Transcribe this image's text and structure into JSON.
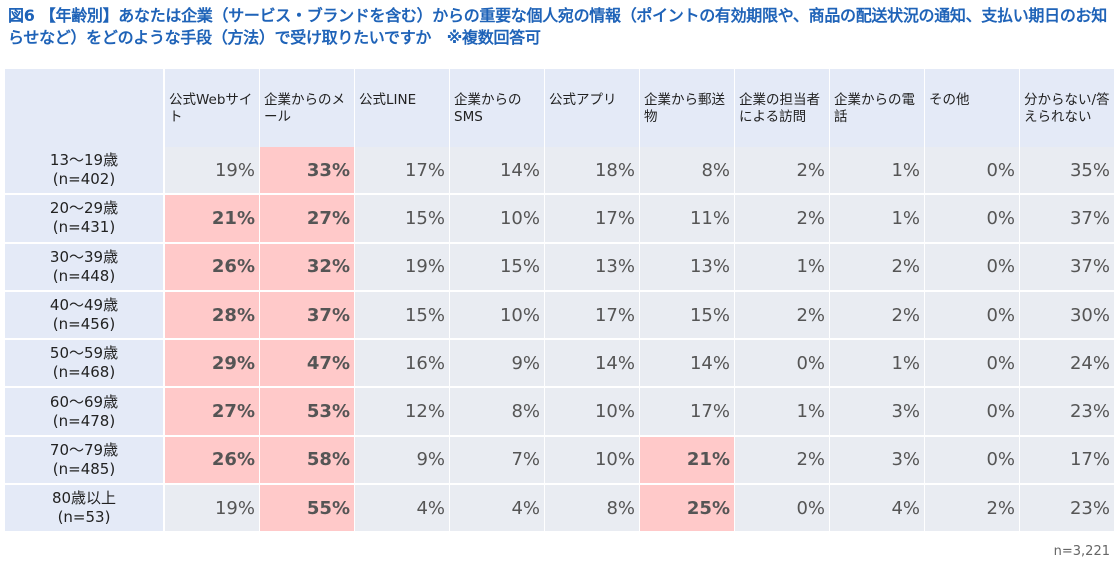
{
  "title": "図6 【年齢別】あなたは企業（サービス・ブランドを含む）からの重要な個人宛の情報（ポイントの有効期限や、商品の配送状況の通知、支払い期日のお知らせなど）をどのような手段（方法）で受け取りたいですか　※複数回答可",
  "note": "n=3,221",
  "colors": {
    "header_bg": "#e4eaf7",
    "cell_bg": "#e9ecf2",
    "highlight": "#ffc9c9",
    "title": "#1f63b8"
  },
  "chart_data": {
    "type": "table",
    "columns": [
      "公式Webサイト",
      "企業からのメール",
      "公式LINE",
      "企業からのSMS",
      "公式アプリ",
      "企業から郵送物",
      "企業の担当者による訪問",
      "企業からの電話",
      "その他",
      "分からない/答えられない"
    ],
    "rows": [
      {
        "label": "13～19歳",
        "n": "(n=402)",
        "values": [
          "19%",
          "33%",
          "17%",
          "14%",
          "18%",
          "8%",
          "2%",
          "1%",
          "0%",
          "35%"
        ],
        "highlight": [
          false,
          true,
          false,
          false,
          false,
          false,
          false,
          false,
          false,
          false
        ]
      },
      {
        "label": "20～29歳",
        "n": "(n=431)",
        "values": [
          "21%",
          "27%",
          "15%",
          "10%",
          "17%",
          "11%",
          "2%",
          "1%",
          "0%",
          "37%"
        ],
        "highlight": [
          true,
          true,
          false,
          false,
          false,
          false,
          false,
          false,
          false,
          false
        ]
      },
      {
        "label": "30～39歳",
        "n": "(n=448)",
        "values": [
          "26%",
          "32%",
          "19%",
          "15%",
          "13%",
          "13%",
          "1%",
          "2%",
          "0%",
          "37%"
        ],
        "highlight": [
          true,
          true,
          false,
          false,
          false,
          false,
          false,
          false,
          false,
          false
        ]
      },
      {
        "label": "40～49歳",
        "n": "(n=456)",
        "values": [
          "28%",
          "37%",
          "15%",
          "10%",
          "17%",
          "15%",
          "2%",
          "2%",
          "0%",
          "30%"
        ],
        "highlight": [
          true,
          true,
          false,
          false,
          false,
          false,
          false,
          false,
          false,
          false
        ]
      },
      {
        "label": "50～59歳",
        "n": "(n=468)",
        "values": [
          "29%",
          "47%",
          "16%",
          "9%",
          "14%",
          "14%",
          "0%",
          "1%",
          "0%",
          "24%"
        ],
        "highlight": [
          true,
          true,
          false,
          false,
          false,
          false,
          false,
          false,
          false,
          false
        ]
      },
      {
        "label": "60～69歳",
        "n": "(n=478)",
        "values": [
          "27%",
          "53%",
          "12%",
          "8%",
          "10%",
          "17%",
          "1%",
          "3%",
          "0%",
          "23%"
        ],
        "highlight": [
          true,
          true,
          false,
          false,
          false,
          false,
          false,
          false,
          false,
          false
        ]
      },
      {
        "label": "70～79歳",
        "n": "(n=485)",
        "values": [
          "26%",
          "58%",
          "9%",
          "7%",
          "10%",
          "21%",
          "2%",
          "3%",
          "0%",
          "17%"
        ],
        "highlight": [
          true,
          true,
          false,
          false,
          false,
          true,
          false,
          false,
          false,
          false
        ]
      },
      {
        "label": "80歳以上",
        "n": "(n=53)",
        "values": [
          "19%",
          "55%",
          "4%",
          "4%",
          "8%",
          "25%",
          "0%",
          "4%",
          "2%",
          "23%"
        ],
        "highlight": [
          false,
          true,
          false,
          false,
          false,
          true,
          false,
          false,
          false,
          false
        ]
      }
    ]
  }
}
